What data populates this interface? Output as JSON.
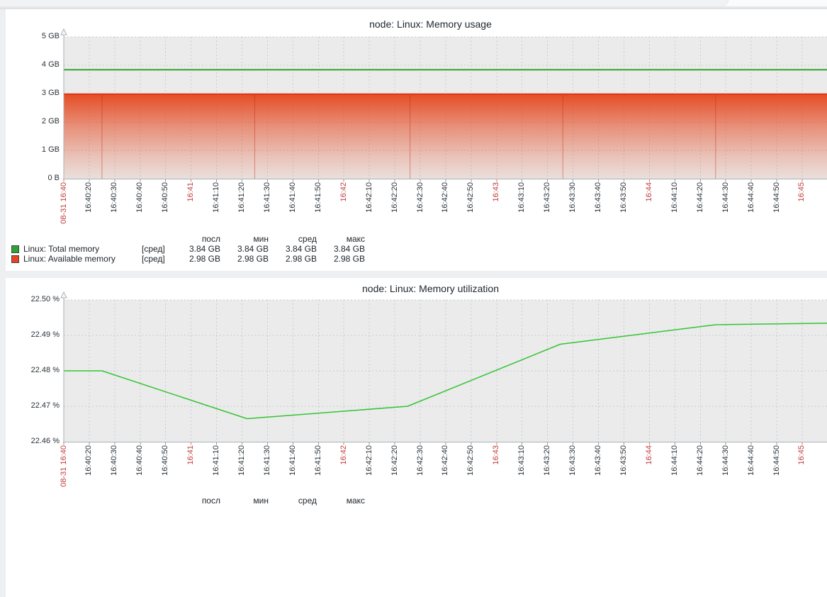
{
  "chart_data": [
    {
      "type": "area",
      "title": "node: Linux: Memory usage",
      "ylabel": "",
      "xlabel": "",
      "ylim": [
        0,
        5
      ],
      "y_unit": "GB",
      "grid": true,
      "y_ticks": [
        {
          "label": "5 GB",
          "v": 5
        },
        {
          "label": "4 GB",
          "v": 4
        },
        {
          "label": "3 GB",
          "v": 3
        },
        {
          "label": "2 GB",
          "v": 2
        },
        {
          "label": "1 GB",
          "v": 1
        },
        {
          "label": "0 B",
          "v": 0
        }
      ],
      "x_ticks": [
        {
          "label": "08-31 16:40",
          "red": true
        },
        {
          "label": "16:40:20"
        },
        {
          "label": "16:40:30"
        },
        {
          "label": "16:40:40"
        },
        {
          "label": "16:40:50"
        },
        {
          "label": "16:41",
          "red": true
        },
        {
          "label": "16:41:10"
        },
        {
          "label": "16:41:20"
        },
        {
          "label": "16:41:30"
        },
        {
          "label": "16:41:40"
        },
        {
          "label": "16:41:50"
        },
        {
          "label": "16:42",
          "red": true
        },
        {
          "label": "16:42:10"
        },
        {
          "label": "16:42:20"
        },
        {
          "label": "16:42:30"
        },
        {
          "label": "16:42:40"
        },
        {
          "label": "16:42:50"
        },
        {
          "label": "16:43",
          "red": true
        },
        {
          "label": "16:43:10"
        },
        {
          "label": "16:43:20"
        },
        {
          "label": "16:43:30"
        },
        {
          "label": "16:43:40"
        },
        {
          "label": "16:43:50"
        },
        {
          "label": "16:44",
          "red": true
        },
        {
          "label": "16:44:10"
        },
        {
          "label": "16:44:20"
        },
        {
          "label": "16:44:30"
        },
        {
          "label": "16:44:40"
        },
        {
          "label": "16:44:50"
        },
        {
          "label": "16:45",
          "red": true
        }
      ],
      "series": [
        {
          "name": "Linux: Total memory",
          "type": "line",
          "color": "#2DA32D",
          "value_gb": 3.84
        },
        {
          "name": "Linux: Available memory",
          "type": "gradient-area",
          "color": "#E5451C",
          "line_color": "#E13514",
          "value_gb": 2.98,
          "seam_secs": [
            15,
            75,
            136,
            196,
            256
          ]
        }
      ],
      "legend": {
        "headers": [
          "посл",
          "мин",
          "сред",
          "макс"
        ],
        "rows": [
          {
            "color": "#2FA32F",
            "label": "Linux: Total memory",
            "func": "[сред]",
            "values": [
              "3.84 GB",
              "3.84 GB",
              "3.84 GB",
              "3.84 GB"
            ]
          },
          {
            "color": "#E8431F",
            "label": "Linux: Available memory",
            "func": "[сред]",
            "values": [
              "2.98 GB",
              "2.98 GB",
              "2.98 GB",
              "2.98 GB"
            ]
          }
        ]
      }
    },
    {
      "type": "line",
      "title": "node: Linux: Memory utilization",
      "ylabel": "",
      "xlabel": "",
      "ylim": [
        22.46,
        22.5
      ],
      "y_unit": "%",
      "grid": true,
      "y_ticks": [
        {
          "label": "22.50 %",
          "v": 22.5
        },
        {
          "label": "22.49 %",
          "v": 22.49
        },
        {
          "label": "22.48 %",
          "v": 22.48
        },
        {
          "label": "22.47 %",
          "v": 22.47
        },
        {
          "label": "22.46 %",
          "v": 22.46
        }
      ],
      "x_ticks": [
        {
          "label": "08-31 16:40",
          "red": true
        },
        {
          "label": "16:40:20"
        },
        {
          "label": "16:40:30"
        },
        {
          "label": "16:40:40"
        },
        {
          "label": "16:40:50"
        },
        {
          "label": "16:41",
          "red": true
        },
        {
          "label": "16:41:10"
        },
        {
          "label": "16:41:20"
        },
        {
          "label": "16:41:30"
        },
        {
          "label": "16:41:40"
        },
        {
          "label": "16:41:50"
        },
        {
          "label": "16:42",
          "red": true
        },
        {
          "label": "16:42:10"
        },
        {
          "label": "16:42:20"
        },
        {
          "label": "16:42:30"
        },
        {
          "label": "16:42:40"
        },
        {
          "label": "16:42:50"
        },
        {
          "label": "16:43",
          "red": true
        },
        {
          "label": "16:43:10"
        },
        {
          "label": "16:43:20"
        },
        {
          "label": "16:43:30"
        },
        {
          "label": "16:43:40"
        },
        {
          "label": "16:43:50"
        },
        {
          "label": "16:44",
          "red": true
        },
        {
          "label": "16:44:10"
        },
        {
          "label": "16:44:20"
        },
        {
          "label": "16:44:30"
        },
        {
          "label": "16:44:40"
        },
        {
          "label": "16:44:50"
        },
        {
          "label": "16:45",
          "red": true
        }
      ],
      "series": [
        {
          "name": "Linux: Memory utilization",
          "type": "points-line",
          "color": "#33C433",
          "points": [
            [
              0,
              22.48
            ],
            [
              15,
              22.48
            ],
            [
              72,
              22.4665
            ],
            [
              135,
              22.47
            ],
            [
              195,
              22.4875
            ],
            [
              256,
              22.493
            ],
            [
              307,
              22.4935
            ]
          ]
        }
      ],
      "legend": {
        "headers": [
          "посл",
          "мин",
          "сред",
          "макс"
        ],
        "rows": []
      }
    }
  ]
}
